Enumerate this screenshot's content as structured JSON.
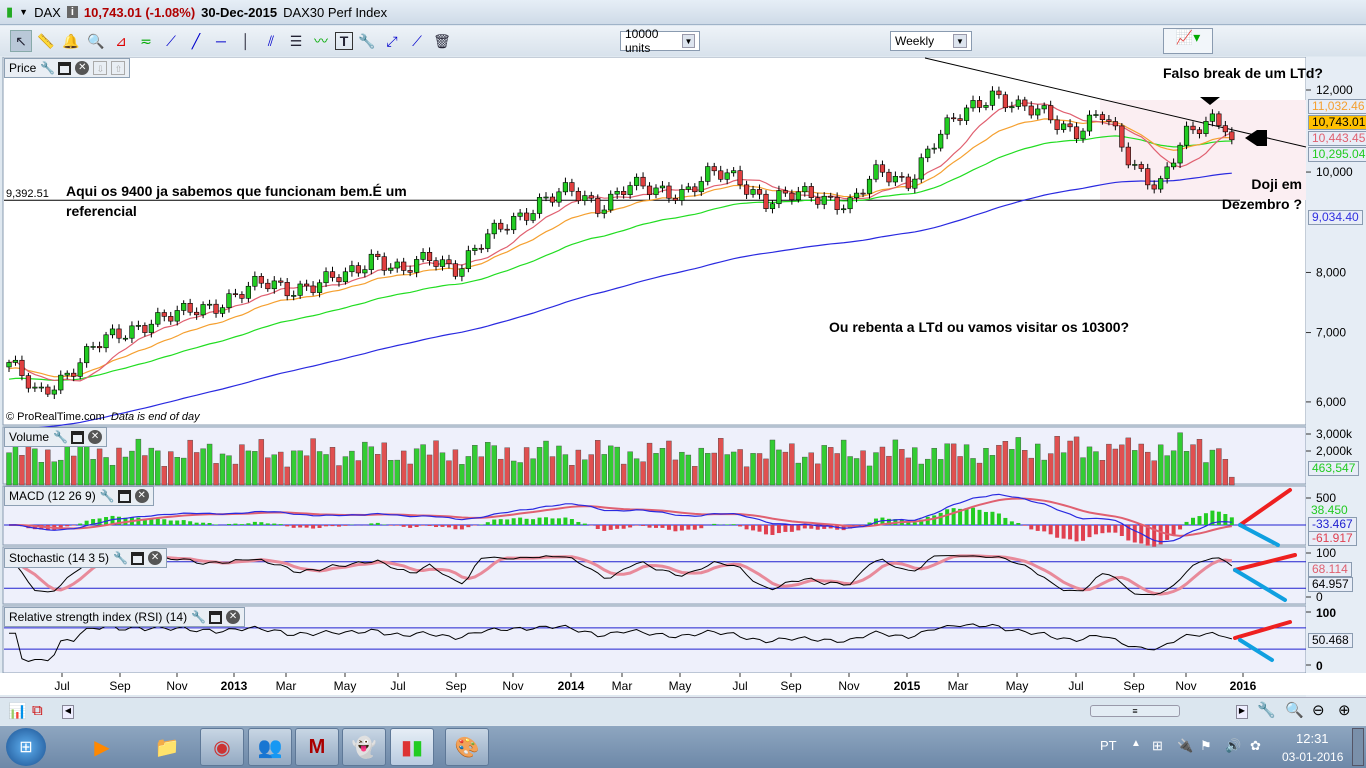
{
  "window": {
    "symbol": "DAX",
    "price_change": "10,743.01 (-1.08%)",
    "date": "30-Dec-2015",
    "instrument_name": "DAX30 Perf Index"
  },
  "toolbar": {
    "units_select": "10000 units",
    "period_select": "Weekly",
    "tools": [
      "pointer-icon",
      "ruler-icon",
      "alarm-bell-icon",
      "zoom-magnifier-icon",
      "triangle-pattern-icon",
      "channel-pattern-icon",
      "segment-icon",
      "line-icon",
      "horizontal-line-icon",
      "vertical-line-icon",
      "parallel-lines-icon",
      "fibonacci-icon",
      "regression-channel-icon",
      "text-icon",
      "properties-tools-icon",
      "arrow-icon",
      "half-line-icon",
      "trash-icon"
    ]
  },
  "panels": {
    "price": {
      "title": "Price",
      "copyright": "© ProRealTime.com",
      "notice": "Data is end of day"
    },
    "volume": {
      "title": "Volume"
    },
    "macd": {
      "title": "MACD (12 26 9)"
    },
    "stochastic": {
      "title": "Stochastic (14 3 5)"
    },
    "rsi": {
      "title": "Relative strength index (RSI) (14)"
    }
  },
  "annotations": {
    "support_level_label": "9,392.51",
    "support_note": "Aqui os 9400 ja sabemos que funcionam bem.É um referencial",
    "false_break": "Falso break de um LTd?",
    "doji": "Doji em Dezembro ?",
    "question": "Ou rebenta a LTd ou vamos visitar os 10300?"
  },
  "value_tags": {
    "price": [
      {
        "value": "11,032.46",
        "color": "#f5a030"
      },
      {
        "value": "10,743.01",
        "color": "#000000",
        "bg": "#ffc000"
      },
      {
        "value": "10,443.45",
        "color": "#e06070"
      },
      {
        "value": "10,295.04",
        "color": "#22cc22"
      },
      {
        "value": "9,034.40",
        "color": "#3030e0"
      }
    ],
    "volume": {
      "value": "463,547",
      "color": "#22cc22"
    },
    "macd": [
      {
        "value": "38.450",
        "color": "#22cc22"
      },
      {
        "value": "-33.467",
        "color": "#2020d0"
      },
      {
        "value": "-61.917",
        "color": "#e04050"
      }
    ],
    "stochastic": [
      {
        "value": "68.114",
        "color": "#e06070"
      },
      {
        "value": "64.957",
        "color": "#000000"
      }
    ],
    "rsi": {
      "value": "50.468",
      "color": "#000000"
    }
  },
  "axes": {
    "price_ticks": [
      "12,000",
      "10,000",
      "8,000",
      "7,000",
      "6,000"
    ],
    "volume_ticks": [
      "3,000k",
      "2,000k"
    ],
    "macd_ticks": [
      "500"
    ],
    "stochastic_ticks": [
      "100",
      "0"
    ],
    "rsi_ticks": [
      "100",
      "0"
    ],
    "date_ticks": [
      "Jul",
      "Sep",
      "Nov",
      "2013",
      "Mar",
      "May",
      "Jul",
      "Sep",
      "Nov",
      "2014",
      "Mar",
      "May",
      "Jul",
      "Sep",
      "Nov",
      "2015",
      "Mar",
      "May",
      "Jul",
      "Sep",
      "Nov",
      "2016"
    ]
  },
  "chart_data": {
    "type": "candlestick",
    "title": "DAX30 Perf Index - Weekly",
    "x_unit": "month-end",
    "x": [
      "2012-04",
      "2012-05",
      "2012-06",
      "2012-07",
      "2012-08",
      "2012-09",
      "2012-10",
      "2012-11",
      "2012-12",
      "2013-01",
      "2013-02",
      "2013-03",
      "2013-04",
      "2013-05",
      "2013-06",
      "2013-07",
      "2013-08",
      "2013-09",
      "2013-10",
      "2013-11",
      "2013-12",
      "2014-01",
      "2014-02",
      "2014-03",
      "2014-04",
      "2014-05",
      "2014-06",
      "2014-07",
      "2014-08",
      "2014-09",
      "2014-10",
      "2014-11",
      "2014-12",
      "2015-01",
      "2015-02",
      "2015-03",
      "2015-04",
      "2015-05",
      "2015-06",
      "2015-07",
      "2015-08",
      "2015-09",
      "2015-10",
      "2015-11",
      "2015-12"
    ],
    "close": [
      6550,
      6050,
      6400,
      6770,
      6970,
      7220,
      7260,
      7400,
      7610,
      7780,
      7740,
      7800,
      7910,
      8350,
      7960,
      8280,
      8100,
      8590,
      9030,
      9400,
      9550,
      9300,
      9690,
      9560,
      9600,
      9940,
      9830,
      9400,
      9470,
      9470,
      9330,
      9980,
      9800,
      10690,
      11400,
      11970,
      11450,
      11410,
      10940,
      11310,
      10260,
      9660,
      10850,
      11380,
      10743
    ],
    "ylim": [
      5800,
      12500
    ],
    "yscale": "log",
    "horizontal_line": 9392.51,
    "last_price": 10743.01
  },
  "bottombar": {
    "scroll_grip": "≡"
  },
  "taskbar": {
    "apps": [
      "media-player",
      "file-explorer",
      "chrome",
      "messenger",
      "mcafee",
      "ghost-app",
      "prorealtime",
      "paint"
    ],
    "language": "PT",
    "time": "12:31",
    "date": "03-01-2016"
  }
}
